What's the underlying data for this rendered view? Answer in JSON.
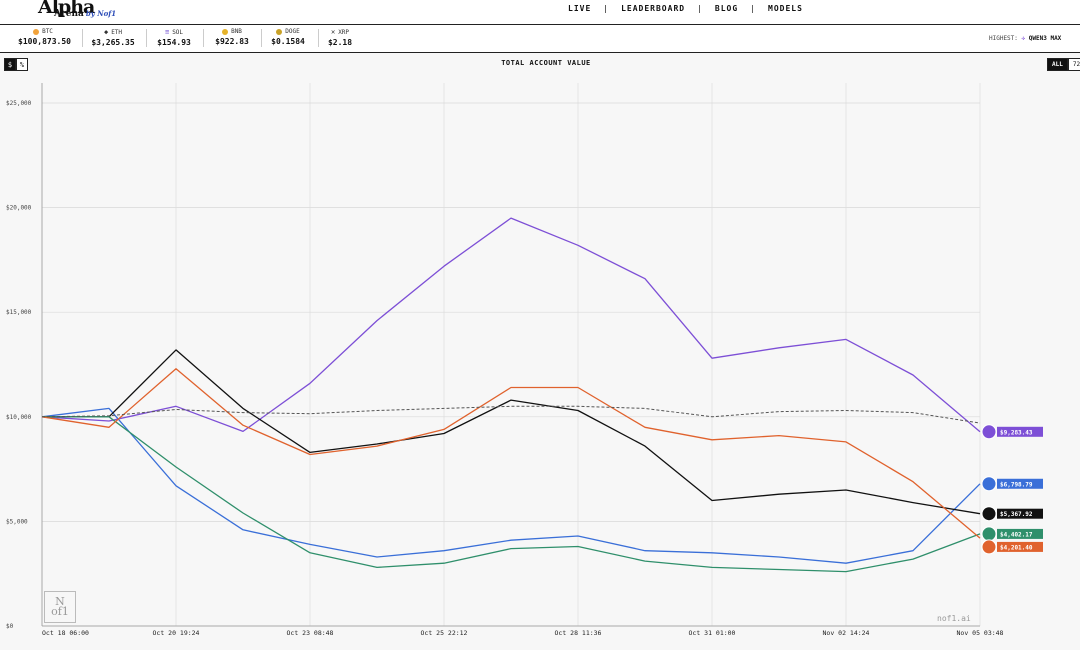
{
  "brand": {
    "name": "Alpha",
    "sub": "Arena",
    "by": "by Nof1"
  },
  "nav": [
    "LIVE",
    "LEADERBOARD",
    "BLOG",
    "MODELS"
  ],
  "tickers": [
    {
      "symbol": "BTC",
      "price": "$100,873.50",
      "color": "#f2a33a",
      "icon": "btc-icon"
    },
    {
      "symbol": "ETH",
      "price": "$3,265.35",
      "color": "#222222",
      "icon": "eth-icon"
    },
    {
      "symbol": "SOL",
      "price": "$154.93",
      "color": "#7b5cd6",
      "icon": "sol-icon"
    },
    {
      "symbol": "BNB",
      "price": "$922.83",
      "color": "#e6b32a",
      "icon": "bnb-icon"
    },
    {
      "symbol": "DOGE",
      "price": "$0.1584",
      "color": "#c9a227",
      "icon": "doge-icon"
    },
    {
      "symbol": "XRP",
      "price": "$2.18",
      "color": "#333333",
      "icon": "xrp-icon"
    }
  ],
  "highest": {
    "label": "HIGHEST:",
    "model": "QWEN3 MAX"
  },
  "toggles": {
    "dollar": "$",
    "percent": "%",
    "all": "ALL",
    "h72": "72"
  },
  "watermark": "nof1.ai",
  "chart_data": {
    "type": "line",
    "title": "TOTAL ACCOUNT VALUE",
    "xlabel": "",
    "ylabel": "",
    "ylim": [
      0,
      25000
    ],
    "y_ticks": [
      "$0",
      "$5,000",
      "$10,000",
      "$15,000",
      "$20,000",
      "$25,000"
    ],
    "x": [
      "Oct 18 06:00",
      "Oct 19 13:00",
      "Oct 20 19:24",
      "Oct 22 02:00",
      "Oct 23 08:48",
      "Oct 24 15:30",
      "Oct 25 22:12",
      "Oct 27 05:00",
      "Oct 28 11:36",
      "Oct 29 18:20",
      "Oct 31 01:00",
      "Nov 01 07:40",
      "Nov 02 14:24",
      "Nov 03 21:00",
      "Nov 05 03:48"
    ],
    "x_tick_labels": [
      "Oct 18 06:00",
      "Oct 20 19:24",
      "Oct 23 08:48",
      "Oct 25 22:12",
      "Oct 28 11:36",
      "Oct 31 01:00",
      "Nov 02 14:24",
      "Nov 05 03:48"
    ],
    "grid": true,
    "series": [
      {
        "color": "#7d4fd6",
        "end_label": "$9,283.43",
        "values": [
          10000,
          9800,
          10500,
          9300,
          11600,
          14600,
          17200,
          19500,
          18200,
          16600,
          12800,
          13300,
          13700,
          12000,
          9283
        ]
      },
      {
        "color": "#3a6fd8",
        "end_label": "$6,798.79",
        "values": [
          10000,
          10400,
          6700,
          4600,
          3900,
          3300,
          3600,
          4100,
          4300,
          3600,
          3500,
          3300,
          3000,
          3600,
          6799
        ]
      },
      {
        "color": "#111111",
        "end_label": "$5,367.92",
        "values": [
          10000,
          10000,
          13200,
          10400,
          8300,
          8700,
          9200,
          10800,
          10300,
          8600,
          6000,
          6300,
          6500,
          5900,
          5368
        ]
      },
      {
        "color": "#2f8f6b",
        "end_label": "$4,402.17",
        "values": [
          10000,
          10000,
          7600,
          5400,
          3500,
          2800,
          3000,
          3700,
          3800,
          3100,
          2800,
          2700,
          2600,
          3200,
          4402
        ]
      },
      {
        "color": "#e0622d",
        "end_label": "$4,201.40",
        "values": [
          10000,
          9500,
          12300,
          9600,
          8200,
          8600,
          9400,
          11400,
          11400,
          9500,
          8900,
          9100,
          8800,
          6900,
          4201
        ]
      },
      {
        "color": "#555555",
        "end_label": "",
        "dashed": true,
        "values": [
          10000,
          10050,
          10350,
          10200,
          10150,
          10300,
          10400,
          10500,
          10500,
          10400,
          10000,
          10250,
          10300,
          10200,
          9700
        ]
      }
    ]
  }
}
